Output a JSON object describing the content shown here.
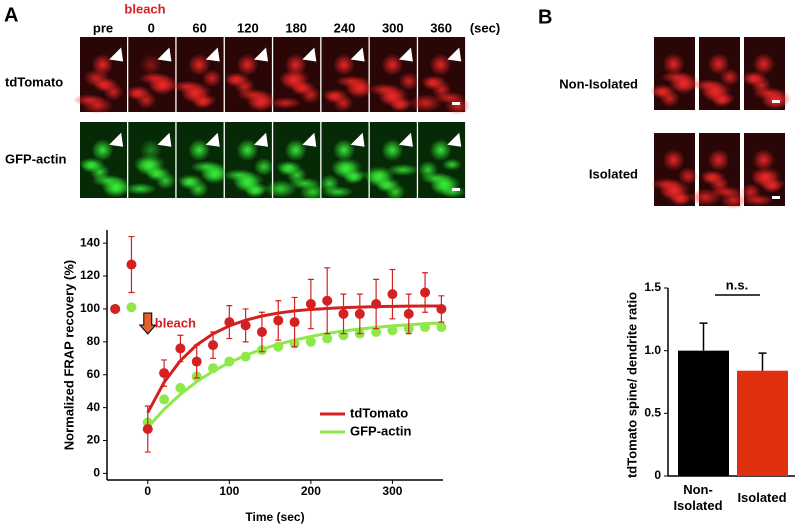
{
  "figure": {
    "panel_a": "A",
    "panel_b": "B",
    "bleach_label": "bleach",
    "time_labels": [
      "pre",
      "0",
      "60",
      "120",
      "180",
      "240",
      "300",
      "360"
    ],
    "time_unit": "(sec)",
    "rows": [
      "tdTomato",
      "GFP-actin"
    ],
    "b_rows": [
      "Non-Isolated",
      "Isolated"
    ]
  },
  "chart_data": [
    {
      "type": "scatter",
      "xlabel": "Time (sec)",
      "ylabel": "Normalized FRAP recovery (%)",
      "xlim": [
        -50,
        362
      ],
      "ylim": [
        -4,
        148
      ],
      "xticks": [
        0,
        100,
        200,
        300
      ],
      "yticks": [
        0,
        20,
        40,
        60,
        80,
        100,
        120,
        140
      ],
      "annotation": "bleach",
      "series": [
        {
          "name": "tdTomato",
          "color": "#d42020",
          "x": [
            -40,
            -20,
            0,
            20,
            40,
            60,
            80,
            100,
            120,
            140,
            160,
            180,
            200,
            220,
            240,
            260,
            280,
            300,
            320,
            340,
            360
          ],
          "values": [
            100,
            127,
            27,
            61,
            76,
            68,
            78,
            92,
            90,
            86,
            93,
            92,
            103,
            105,
            97,
            97,
            103,
            109,
            97,
            110,
            100
          ],
          "errors": [
            null,
            17,
            14,
            8,
            8,
            10,
            8,
            10,
            10,
            12,
            12,
            15,
            15,
            20,
            12,
            12,
            15,
            15,
            12,
            12,
            8
          ],
          "fit_x": [
            0,
            20,
            40,
            60,
            80,
            100,
            120,
            140,
            160,
            180,
            200,
            220,
            240,
            260,
            280,
            300,
            320,
            340,
            360
          ],
          "fit": [
            37,
            55.4,
            68.6,
            78.1,
            84.9,
            89.7,
            93.2,
            95.7,
            97.5,
            98.8,
            99.7,
            100.3,
            100.8,
            101.1,
            101.4,
            101.6,
            101.7,
            101.8,
            101.8
          ]
        },
        {
          "name": "GFP-actin",
          "color": "#8ee84a",
          "x": [
            -40,
            -20,
            0,
            20,
            40,
            60,
            80,
            100,
            120,
            140,
            160,
            180,
            200,
            220,
            240,
            260,
            280,
            300,
            320,
            340,
            360
          ],
          "values": [
            100,
            101,
            31,
            45,
            52,
            59,
            64,
            68,
            71,
            75,
            77,
            79,
            80,
            82,
            84,
            85,
            86,
            87,
            88,
            89,
            89
          ],
          "fit_x": [
            0,
            20,
            40,
            60,
            80,
            100,
            120,
            140,
            160,
            180,
            200,
            220,
            240,
            260,
            280,
            300,
            320,
            340,
            360
          ],
          "fit": [
            28,
            39,
            48.1,
            55.8,
            62.1,
            67.4,
            71.8,
            75.5,
            78.6,
            81.1,
            83.3,
            85.1,
            86.6,
            87.8,
            88.8,
            89.7,
            90.4,
            91,
            91.5
          ]
        }
      ]
    },
    {
      "type": "bar",
      "ylabel": "tdTomato spine/ dendrite ratio",
      "categories": [
        "Non-Isolated",
        "Isolated"
      ],
      "values": [
        1.0,
        0.84
      ],
      "errors": [
        0.22,
        0.14
      ],
      "colors": [
        "#000000",
        "#e03010"
      ],
      "ylim": [
        0,
        1.5
      ],
      "yticks": [
        0,
        0.5,
        {
          "value": 1,
          "label": "1.0"
        },
        1.5
      ],
      "annotation": "n.s."
    }
  ]
}
